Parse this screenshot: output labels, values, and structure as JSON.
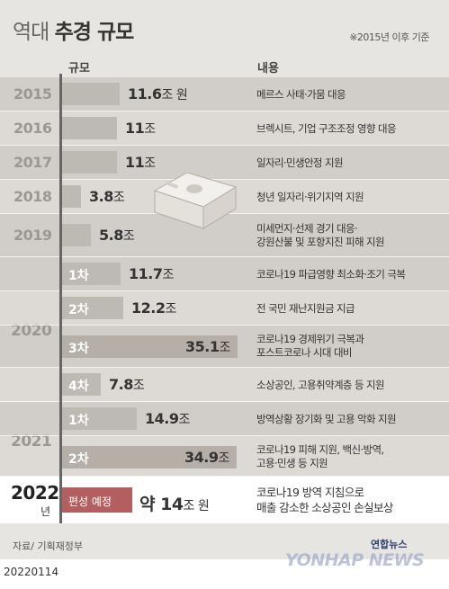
{
  "title": {
    "light": "역대",
    "bold": "추경 규모"
  },
  "note": "※2015년 이후 기준",
  "headers": {
    "scale": "규모",
    "content": "내용"
  },
  "chart_data": {
    "type": "bar",
    "unit": "조 원",
    "rows": [
      {
        "year": "2015",
        "sub": "",
        "value": 11.6,
        "label": "11.6",
        "unit": "조 원",
        "desc": [
          "메르스 사태·가뭄 대응"
        ]
      },
      {
        "year": "2016",
        "sub": "",
        "value": 11,
        "label": "11",
        "unit": "조",
        "desc": [
          "브렉시트, 기업 구조조정 영향 대응"
        ]
      },
      {
        "year": "2017",
        "sub": "",
        "value": 11,
        "label": "11",
        "unit": "조",
        "desc": [
          "일자리·민생안정 지원"
        ]
      },
      {
        "year": "2018",
        "sub": "",
        "value": 3.8,
        "label": "3.8",
        "unit": "조",
        "desc": [
          "청년 일자리·위기지역 지원"
        ]
      },
      {
        "year": "2019",
        "sub": "",
        "value": 5.8,
        "label": "5.8",
        "unit": "조",
        "desc": [
          "미세먼지·선제 경기 대응·",
          "강원산불 및 포항지진 피해 지원"
        ]
      },
      {
        "year": "2020",
        "sub": "1차",
        "value": 11.7,
        "label": "11.7",
        "unit": "조",
        "desc": [
          "코로나19 파급영향 최소화·조기 극복"
        ]
      },
      {
        "year": "2020",
        "sub": "2차",
        "value": 12.2,
        "label": "12.2",
        "unit": "조",
        "desc": [
          "전 국민 재난지원금 지급"
        ]
      },
      {
        "year": "2020",
        "sub": "3차",
        "value": 35.1,
        "label": "35.1",
        "unit": "조",
        "desc": [
          "코로나19 경제위기 극복과",
          "포스트코로나 시대 대비"
        ]
      },
      {
        "year": "2020",
        "sub": "4차",
        "value": 7.8,
        "label": "7.8",
        "unit": "조",
        "desc": [
          "소상공인, 고용취약계층 등 지원"
        ]
      },
      {
        "year": "2021",
        "sub": "1차",
        "value": 14.9,
        "label": "14.9",
        "unit": "조",
        "desc": [
          "방역상황 장기화 및 고용 악화 지원"
        ]
      },
      {
        "year": "2021",
        "sub": "2차",
        "value": 34.9,
        "label": "34.9",
        "unit": "조",
        "desc": [
          "코로나19 피해 지원, 백신·방역,",
          "고용·민생 등 지원"
        ]
      },
      {
        "year": "2022",
        "sub": "편성 예정",
        "value": 14,
        "label": "14",
        "prefix": "약",
        "unit": "조 원",
        "desc": [
          "코로나19 방역 지침으로",
          "매출 감소한 소상공인 손실보상"
        ]
      }
    ],
    "year_labels": {
      "2020": "2020",
      "2021": "2021",
      "2022": "2022",
      "2022_suffix": "년"
    }
  },
  "source": "자료/ 기획재정부",
  "logo_text": "연합뉴스",
  "watermark": "YONHAP NEWS",
  "date": "20220114",
  "colors": {
    "bar": "#bdb9b3",
    "bar_wide": "#b5afa7",
    "highlight": "#b45f5f",
    "axis": "#666666"
  }
}
